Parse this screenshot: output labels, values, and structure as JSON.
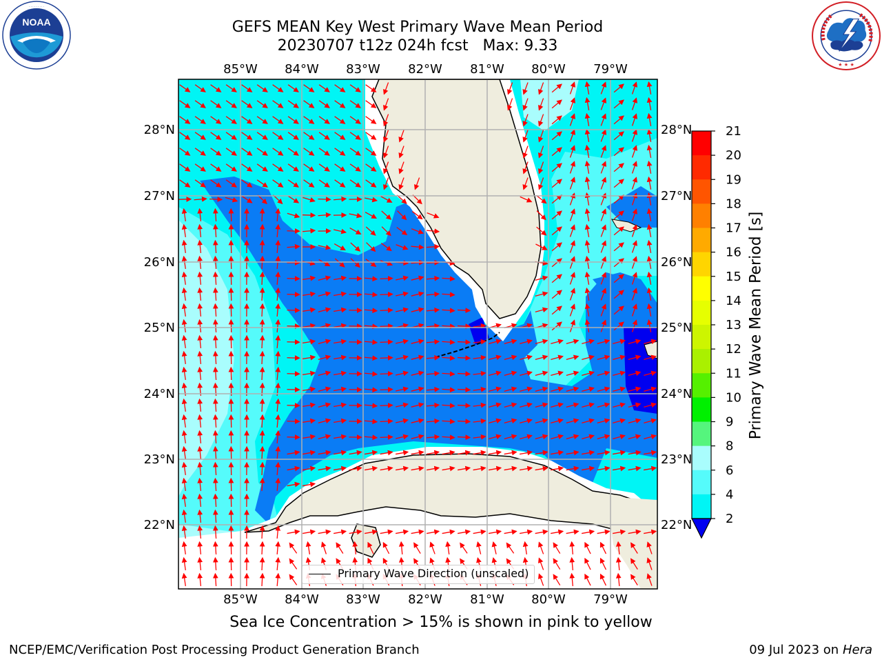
{
  "header": {
    "title_line1": "GEFS MEAN Key West Primary Wave Mean Period",
    "title_line2": "20230707 t12z 024h fcst   Max: 9.33"
  },
  "logos": {
    "left": {
      "name": "noaa-logo",
      "text": "NOAA",
      "ring_text": "NATIONAL OCEANIC AND ATMOSPHERIC ADMINISTRATION · U.S. DEPARTMENT OF COMMERCE"
    },
    "right": {
      "name": "nws-logo",
      "ring_text": "NATIONAL WEATHER SERVICE"
    }
  },
  "map": {
    "lon_labels": [
      "85°W",
      "84°W",
      "83°W",
      "82°W",
      "81°W",
      "80°W",
      "79°W"
    ],
    "lat_labels": [
      "28°N",
      "27°N",
      "26°N",
      "25°N",
      "24°N",
      "23°N",
      "22°N"
    ],
    "legend_label": "Primary Wave Direction (unscaled)",
    "colors": {
      "land": "#efedde",
      "band_2_4": "#0a7cf5",
      "band_4_6": "#00f5f5",
      "band_6_8": "#55fbfb",
      "band_8_9": "#a9fdfd",
      "band_below_2": "#0000f0",
      "band_9_10": "#55f57d",
      "arrows": "#ff0000",
      "gridlines": "#b0b0b0"
    }
  },
  "colorbar": {
    "title": "Primary Wave Mean Period [s]",
    "ticks": [
      "21",
      "20",
      "19",
      "18",
      "17",
      "16",
      "15",
      "14",
      "13",
      "12",
      "11",
      "10",
      "9",
      "8",
      "6",
      "4",
      "2"
    ],
    "colors": [
      "#ff0000",
      "#ff2a00",
      "#ff5500",
      "#ff8000",
      "#ffaa00",
      "#ffd500",
      "#ffff00",
      "#e6ff00",
      "#cdf500",
      "#aaf000",
      "#55f000",
      "#00f000",
      "#55f57d",
      "#a9fdfd",
      "#55fbfb",
      "#00f5f5",
      "#0a7cf5",
      "#0000f0"
    ]
  },
  "note": "Sea Ice Concentration > 15% is shown in pink to yellow",
  "footer": {
    "left": "NCEP/EMC/Verification Post Processing Product Generation Branch",
    "right_prefix": "09 Jul 2023 on ",
    "right_machine": "Hera"
  }
}
